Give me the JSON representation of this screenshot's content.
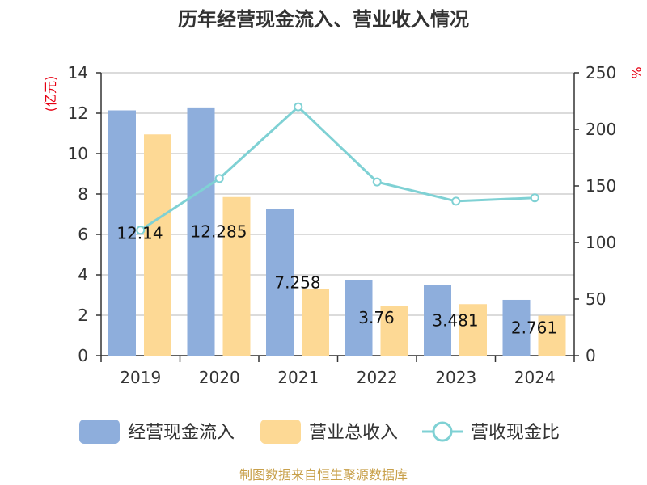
{
  "chart_data": {
    "type": "bar",
    "title": "历年经营现金流入、营业收入情况",
    "left_axis_unit": "(亿元)",
    "right_axis_unit": "%",
    "categories": [
      "2019",
      "2020",
      "2021",
      "2022",
      "2023",
      "2024"
    ],
    "ylim_left": [
      0,
      14
    ],
    "yticks_left": [
      "0",
      "2",
      "4",
      "6",
      "8",
      "10",
      "12",
      "14"
    ],
    "ylim_right": [
      0,
      250
    ],
    "yticks_right": [
      "0",
      "50",
      "100",
      "150",
      "200",
      "250"
    ],
    "grid": true,
    "legend_position": "bottom",
    "series": [
      {
        "name": "经营现金流入",
        "kind": "bar",
        "axis": "left",
        "color": "#8eaedc",
        "values": [
          12.14,
          12.285,
          7.258,
          3.76,
          3.481,
          2.761
        ],
        "labels": [
          "12.14",
          "12.285",
          "7.258",
          "3.76",
          "3.481",
          "2.761"
        ]
      },
      {
        "name": "营业总收入",
        "kind": "bar",
        "axis": "left",
        "color": "#fdd995",
        "values": [
          10.95,
          7.85,
          3.3,
          2.45,
          2.55,
          1.98
        ]
      },
      {
        "name": "营收现金比",
        "kind": "line",
        "axis": "right",
        "color": "#7fd1d4",
        "values": [
          110.9,
          156.5,
          219.9,
          153.5,
          136.5,
          139.5
        ]
      }
    ],
    "source": "制图数据来自恒生聚源数据库"
  }
}
